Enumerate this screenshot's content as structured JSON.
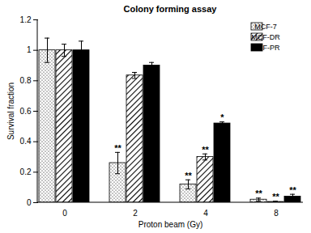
{
  "chart_data": {
    "type": "bar",
    "title": "Colony forming assay",
    "x_label": "Proton beam (Gy)",
    "y_label": "Survival fraction",
    "categories": [
      "0",
      "2",
      "4",
      "8"
    ],
    "series": [
      {
        "name": "MCF-7",
        "color": "#ffffff",
        "values": [
          1.0,
          0.26,
          0.12,
          0.02
        ],
        "errors": [
          0.08,
          0.07,
          0.03,
          0.01
        ],
        "annotations": [
          null,
          "**",
          "**",
          "**"
        ]
      },
      {
        "name": "MCF-DR",
        "color": "#ffffff",
        "values": [
          1.0,
          0.835,
          0.3,
          0.005
        ],
        "errors": [
          0.04,
          0.02,
          0.02,
          0.005
        ],
        "annotations": [
          null,
          null,
          "**",
          "**"
        ]
      },
      {
        "name": "MCF-PR",
        "color": "#000000",
        "values": [
          1.0,
          0.9,
          0.52,
          0.04
        ],
        "errors": [
          0.06,
          0.02,
          0.01,
          0.015
        ],
        "annotations": [
          null,
          null,
          "*",
          "**"
        ]
      }
    ],
    "ylim": [
      0,
      1.2
    ],
    "yticks": [
      0,
      0.2,
      0.4,
      0.6,
      0.8,
      1,
      1.2
    ],
    "grid": false,
    "legend": "top-right"
  }
}
